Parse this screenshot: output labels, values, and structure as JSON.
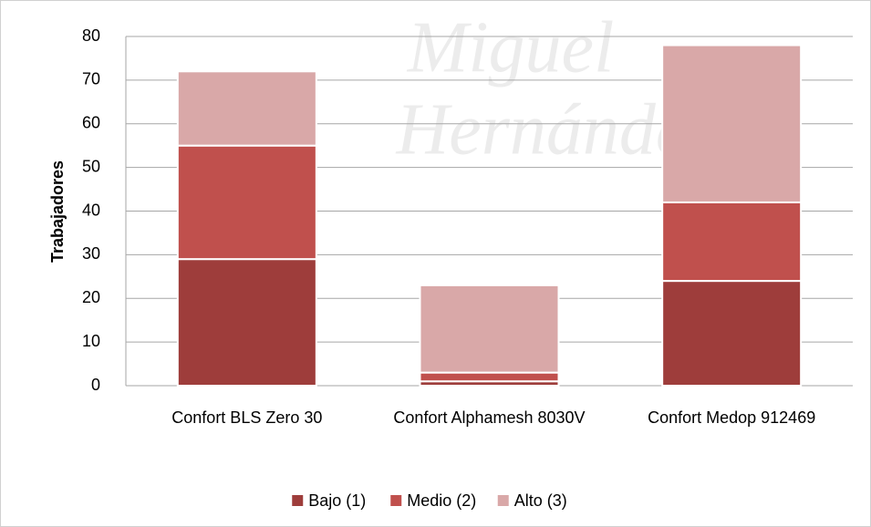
{
  "chart_data": {
    "type": "stacked_bar",
    "watermark": [
      "Miguel",
      "Hernández"
    ],
    "ylabel": "Trabajadores",
    "categories": [
      "Confort BLS Zero 30",
      "Confort Alphamesh 8030V",
      "Confort Medop 912469"
    ],
    "series": [
      {
        "name": "Bajo (1)",
        "color": "#9e3d3b",
        "values": [
          29,
          1,
          24
        ]
      },
      {
        "name": "Medio (2)",
        "color": "#c0504d",
        "values": [
          26,
          2,
          18
        ]
      },
      {
        "name": "Alto (3)",
        "color": "#d9a8a8",
        "values": [
          17,
          20,
          36
        ]
      }
    ],
    "ylim": [
      0,
      80
    ],
    "yticks": [
      0,
      10,
      20,
      30,
      40,
      50,
      60,
      70,
      80
    ],
    "grid": true,
    "legend": "bottom"
  }
}
